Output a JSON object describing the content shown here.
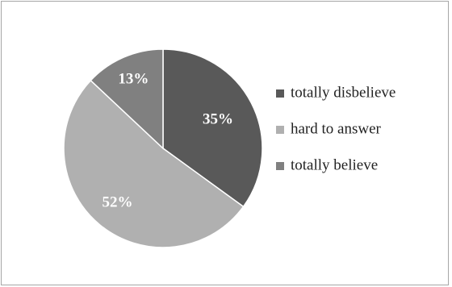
{
  "chart_data": {
    "type": "pie",
    "title": "",
    "categories": [
      "totally disbelieve",
      "hard to answer",
      "totally believe"
    ],
    "values": [
      35,
      52,
      13
    ],
    "labels": [
      "35%",
      "52%",
      "13%"
    ],
    "colors": [
      "#595959",
      "#b0b0b0",
      "#808080"
    ],
    "start_angle": "12 o'clock",
    "direction": "clockwise",
    "legend_position": "right"
  }
}
